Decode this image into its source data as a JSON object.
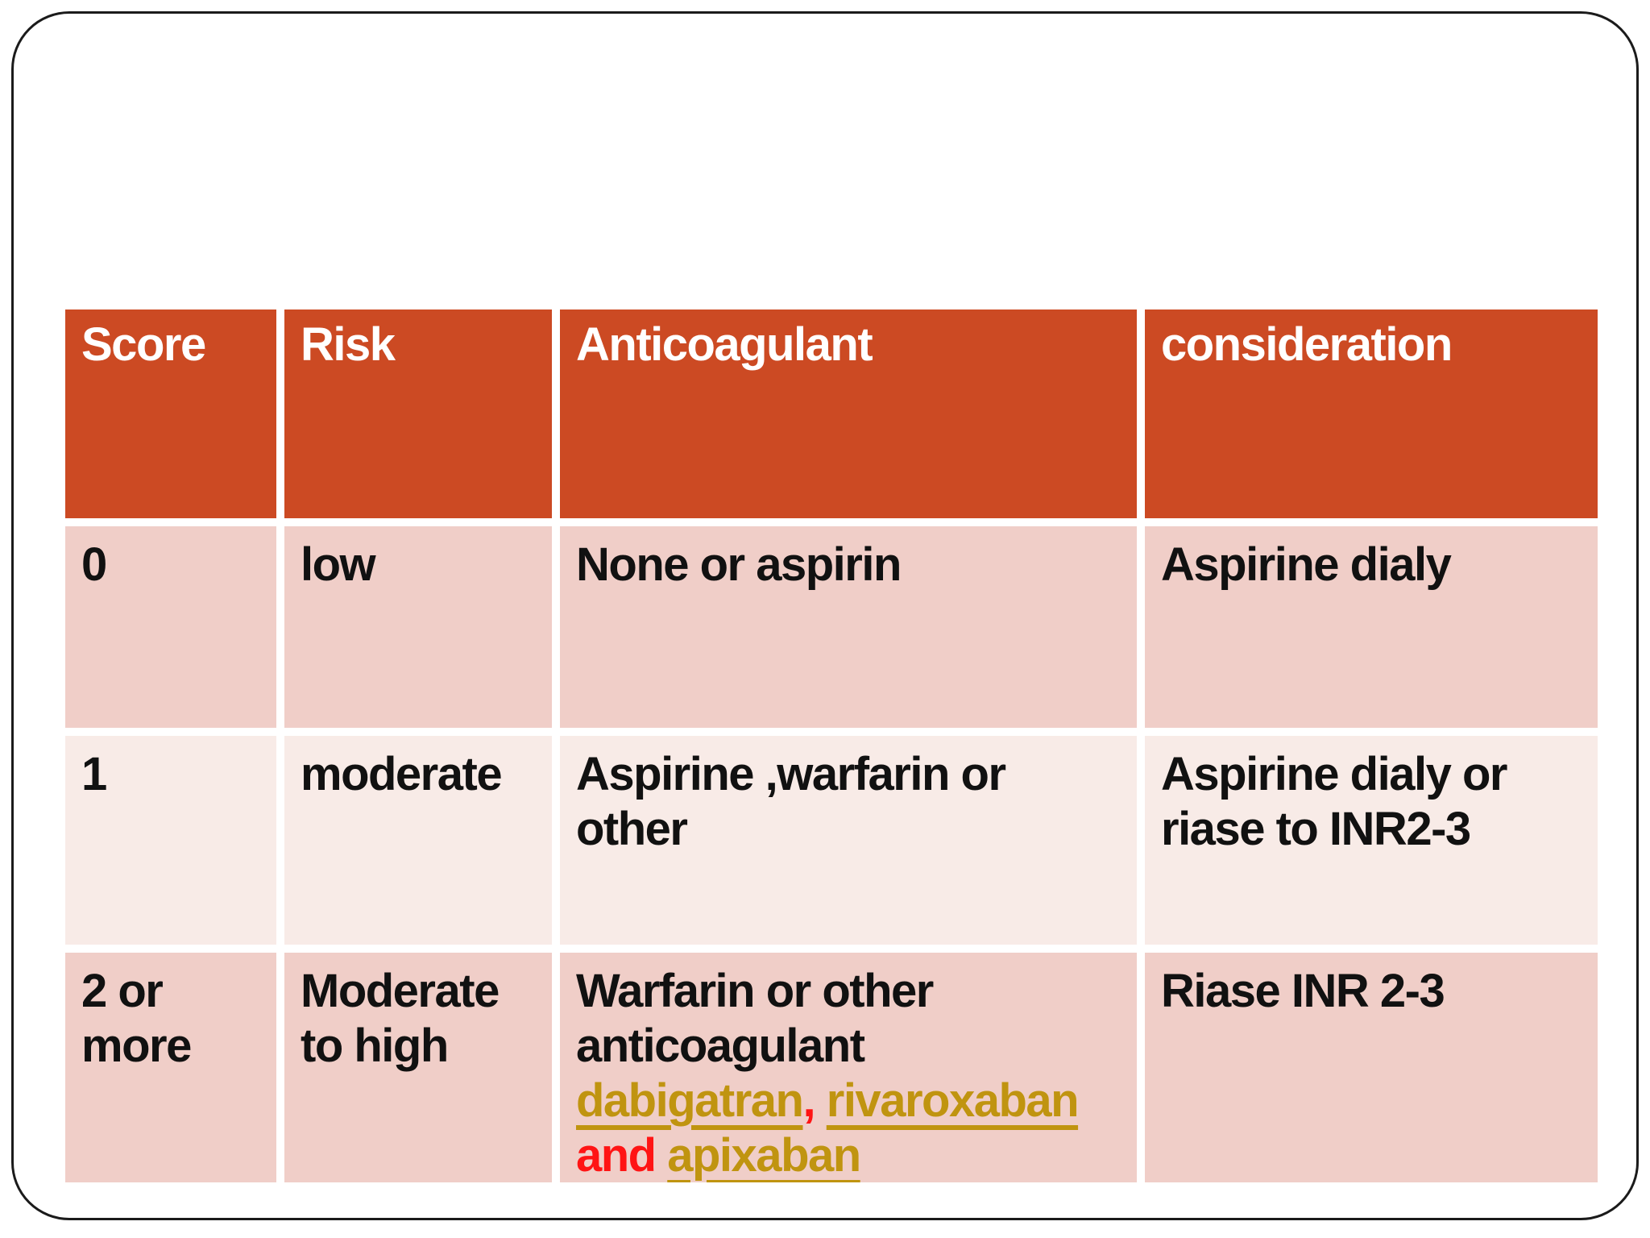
{
  "slide": {
    "background": "#ffffff",
    "frame_border_color": "#1b1b1b"
  },
  "colors": {
    "header_bg": "#cc4a23",
    "header_text": "#ffffff",
    "row_a_bg": "#f0cec8",
    "row_b_bg": "#f8ebe7",
    "body_text": "#111111",
    "drug_link": "#c09410",
    "emphasis_red": "#ff1414",
    "gridline": "#ffffff"
  },
  "table": {
    "columns": [
      {
        "key": "score",
        "label": "Score"
      },
      {
        "key": "risk",
        "label": "Risk"
      },
      {
        "key": "anticoagulant",
        "label": "Anticoagulant"
      },
      {
        "key": "consideration",
        "label": "consideration"
      }
    ],
    "rows": [
      {
        "score": "0",
        "risk": "low",
        "anticoagulant": "None or aspirin",
        "consideration": "Aspirine dialy"
      },
      {
        "score": "1",
        "risk": "moderate",
        "anticoagulant": "Aspirine ,warfarin or\nother",
        "consideration": "Aspirine dialy or\nriase to INR2-3"
      },
      {
        "score": "2 or\nmore",
        "risk": "Moderate\nto high",
        "anticoagulant_segments": [
          {
            "text": "Warfarin or other\nanticoagulant\n",
            "style": "plain"
          },
          {
            "text": "dabigatran",
            "style": "drug-link"
          },
          {
            "text": ",",
            "style": "red"
          },
          {
            "text": " ",
            "style": "plain"
          },
          {
            "text": "rivaroxaban",
            "style": "drug-link"
          },
          {
            "text": "\n",
            "style": "plain"
          },
          {
            "text": "and",
            "style": "red"
          },
          {
            "text": " ",
            "style": "plain"
          },
          {
            "text": "apixaban",
            "style": "drug-link"
          }
        ],
        "consideration": "Riase INR 2-3"
      }
    ]
  }
}
